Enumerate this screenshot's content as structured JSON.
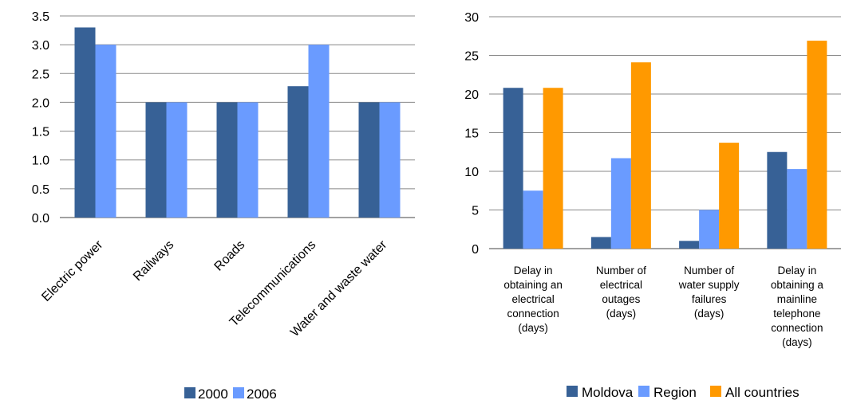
{
  "colors": {
    "c2000": "#376196",
    "c2006": "#6a9bff",
    "moldova": "#376196",
    "region": "#6a9bff",
    "all": "#ff9900",
    "grid": "#888888",
    "axis": "#444444"
  },
  "chart_data": [
    {
      "type": "bar",
      "categories": [
        "Electric power",
        "Railways",
        "Roads",
        "Telecommunications",
        "Water and waste water"
      ],
      "series": [
        {
          "name": "2000",
          "values": [
            3.3,
            2.0,
            2.0,
            2.28,
            2.0
          ]
        },
        {
          "name": "2006",
          "values": [
            3.0,
            2.0,
            2.0,
            3.0,
            2.0
          ]
        }
      ],
      "yticks": [
        "0.0",
        "0.5",
        "1.0",
        "1.5",
        "2.0",
        "2.5",
        "3.0",
        "3.5"
      ],
      "ylim": [
        0,
        3.5
      ],
      "grid": true,
      "legend": "bottom",
      "title": "",
      "xlabel": "",
      "ylabel": ""
    },
    {
      "type": "bar",
      "categories": [
        [
          "Delay in",
          "obtaining an",
          "electrical",
          "connection",
          "(days)"
        ],
        [
          "Number of",
          "electrical",
          "outages",
          "(days)"
        ],
        [
          "Number of",
          "water supply",
          "failures",
          "(days)"
        ],
        [
          "Delay in",
          "obtaining a",
          "mainline",
          "telephone",
          "connection",
          "(days)"
        ]
      ],
      "series": [
        {
          "name": "Moldova",
          "values": [
            20.8,
            1.5,
            1.0,
            12.5
          ]
        },
        {
          "name": "Region",
          "values": [
            7.5,
            11.7,
            5.0,
            10.3
          ]
        },
        {
          "name": "All countries",
          "values": [
            20.8,
            24.1,
            13.7,
            26.9
          ]
        }
      ],
      "yticks": [
        "0",
        "5",
        "10",
        "15",
        "20",
        "25",
        "30"
      ],
      "ylim": [
        0,
        30
      ],
      "grid": true,
      "legend": "bottom",
      "title": "",
      "xlabel": "",
      "ylabel": ""
    }
  ]
}
